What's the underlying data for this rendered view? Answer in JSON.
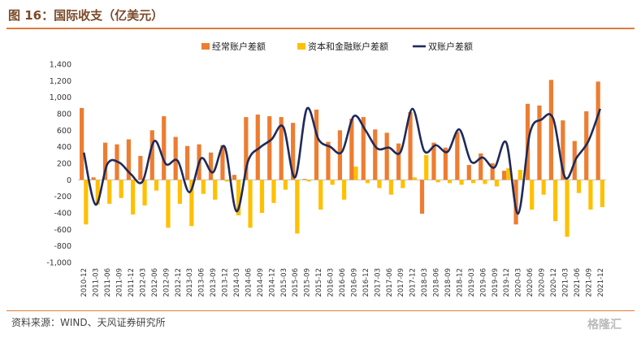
{
  "title": "图 16：国际收支（亿美元）",
  "source": "资料来源：WIND、天风证券研究所",
  "watermark": "格隆汇",
  "colors": {
    "current": "#ED7D31",
    "capital": "#FFC000",
    "balance": "#1F2A5A",
    "rule": "#E07B39"
  },
  "chart_data": {
    "type": "bar",
    "title": "国际收支（亿美元）",
    "ylim": [
      -1000,
      1400
    ],
    "yticks": [
      -1000,
      -800,
      -600,
      -400,
      -200,
      0,
      200,
      400,
      600,
      800,
      1000,
      1200,
      1400
    ],
    "ytick_labels": [
      "-1,000",
      "-800",
      "-600",
      "-400",
      "-200",
      "0",
      "200",
      "400",
      "600",
      "800",
      "1,000",
      "1,200",
      "1,400"
    ],
    "grid": false,
    "legend_position": "top",
    "categories": [
      "2010-12",
      "2011-03",
      "2011-06",
      "2011-09",
      "2011-12",
      "2012-03",
      "2012-06",
      "2012-09",
      "2012-12",
      "2013-03",
      "2013-06",
      "2013-09",
      "2013-12",
      "2014-03",
      "2014-06",
      "2014-09",
      "2014-12",
      "2015-03",
      "2015-06",
      "2015-09",
      "2015-12",
      "2016-03",
      "2016-06",
      "2016-09",
      "2016-12",
      "2017-03",
      "2017-06",
      "2017-09",
      "2017-12",
      "2018-03",
      "2018-06",
      "2018-09",
      "2018-12",
      "2019-03",
      "2019-06",
      "2019-09",
      "2019-12",
      "2020-03",
      "2020-06",
      "2020-09",
      "2020-12",
      "2021-03",
      "2021-06",
      "2021-09",
      "2021-12"
    ],
    "series": [
      {
        "name": "经常账户差额",
        "kind": "bar",
        "values": [
          870,
          30,
          450,
          430,
          490,
          290,
          600,
          770,
          520,
          410,
          430,
          330,
          420,
          60,
          760,
          790,
          770,
          760,
          690,
          10,
          850,
          460,
          600,
          740,
          760,
          610,
          570,
          440,
          820,
          -410,
          450,
          390,
          580,
          180,
          320,
          200,
          110,
          -540,
          920,
          900,
          1210,
          720,
          470,
          830,
          1190
        ]
      },
      {
        "name": "资本和金融账户差额",
        "kind": "bar",
        "values": [
          -540,
          -300,
          -290,
          -220,
          -420,
          -310,
          -130,
          -580,
          -290,
          -560,
          -170,
          -240,
          -20,
          -430,
          -580,
          -400,
          -280,
          -120,
          -650,
          -20,
          -360,
          -60,
          -240,
          160,
          -40,
          -100,
          -180,
          -100,
          30,
          300,
          -30,
          -40,
          -60,
          -40,
          -50,
          -80,
          140,
          120,
          -360,
          -180,
          -500,
          -690,
          -160,
          -360,
          -330
        ]
      },
      {
        "name": "双账户差额",
        "kind": "line",
        "values": [
          330,
          -300,
          190,
          210,
          70,
          -20,
          470,
          190,
          230,
          -150,
          260,
          90,
          400,
          -380,
          230,
          390,
          490,
          640,
          30,
          860,
          490,
          400,
          340,
          770,
          600,
          380,
          390,
          340,
          860,
          350,
          420,
          340,
          610,
          220,
          270,
          150,
          450,
          -410,
          560,
          730,
          740,
          30,
          270,
          470,
          860
        ]
      }
    ]
  }
}
